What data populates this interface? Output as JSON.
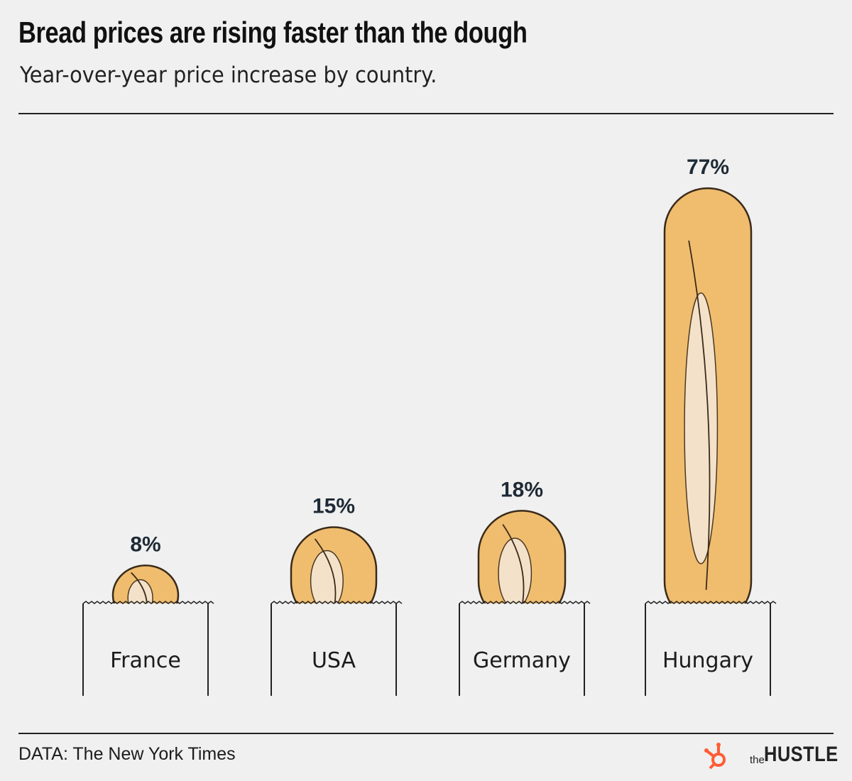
{
  "header": {
    "title": "Bread prices are rising faster than the dough",
    "subtitle": "Year-over-year price increase by country."
  },
  "footer": {
    "source": "DATA: The New York Times",
    "logo_the": "the",
    "logo_hustle": "HUSTLE"
  },
  "colors": {
    "background": "#eff0ef",
    "bread_fill": "#f0bd6e",
    "bread_crumb": "#f4e7d3",
    "bread_outline": "#3a2a1a",
    "logo_accent": "#ff5c35"
  },
  "chart_data": {
    "type": "bar",
    "title": "Bread prices are rising faster than the dough",
    "subtitle": "Year-over-year price increase by country.",
    "categories": [
      "France",
      "USA",
      "Germany",
      "Hungary"
    ],
    "values": [
      8,
      15,
      18,
      77
    ],
    "value_labels": [
      "8%",
      "15%",
      "18%",
      "77%"
    ],
    "unit": "%",
    "mark": "bread loaf in paper bag",
    "grid": false,
    "legend": "none"
  }
}
